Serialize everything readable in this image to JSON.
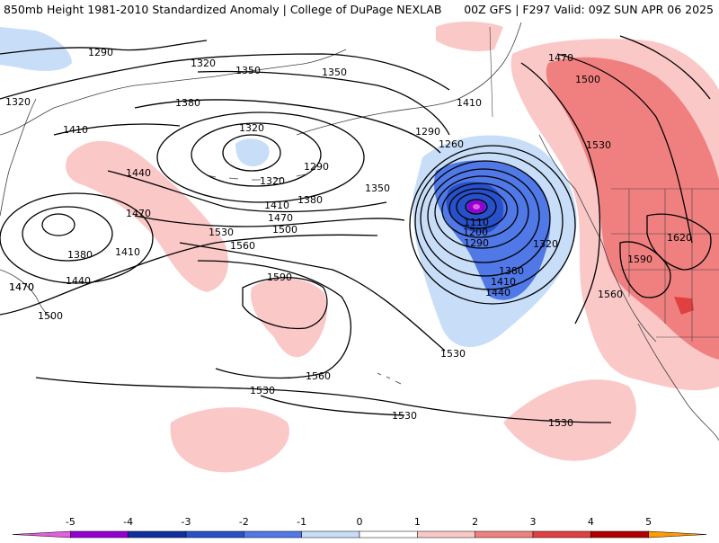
{
  "header": {
    "title": "850mb Height 1981-2010 Standardized Anomaly | College of DuPage NEXLAB",
    "run_info": "00Z GFS | F297 Valid: 09Z SUN APR 06 2025"
  },
  "contour_labels": [
    "1290",
    "1320",
    "1320",
    "1350",
    "1350",
    "1380",
    "1410",
    "1410",
    "1440",
    "1470",
    "1470",
    "1320",
    "1290",
    "1320",
    "1410",
    "1380",
    "1470",
    "1500",
    "1530",
    "1560",
    "1350",
    "1290",
    "1260",
    "1110",
    "1200",
    "1290",
    "1320",
    "1380",
    "1410",
    "1440",
    "1380",
    "1410",
    "1440",
    "1470",
    "1500",
    "1590",
    "1560",
    "1530",
    "1530",
    "1530",
    "1530",
    "1470",
    "1500",
    "1530",
    "1620",
    "1590",
    "1560"
  ],
  "colorbar": {
    "ticks": [
      "-5",
      "-4",
      "-3",
      "-2",
      "-1",
      "0",
      "1",
      "2",
      "3",
      "4",
      "5"
    ],
    "colors": [
      "#e060e0",
      "#9400d3",
      "#1030a0",
      "#2850c8",
      "#5078e6",
      "#c8def8",
      "#ffffff",
      "#fbc8c8",
      "#f08080",
      "#e04040",
      "#b00000",
      "#ff9a00"
    ]
  },
  "colors": {
    "neg_light": "#c8def8",
    "neg_mid": "#5078e6",
    "neg_dark": "#2850c8",
    "pos_light": "#fbc8c8",
    "pos_mid": "#f08080",
    "contour": "#000000",
    "coast": "#404040"
  }
}
